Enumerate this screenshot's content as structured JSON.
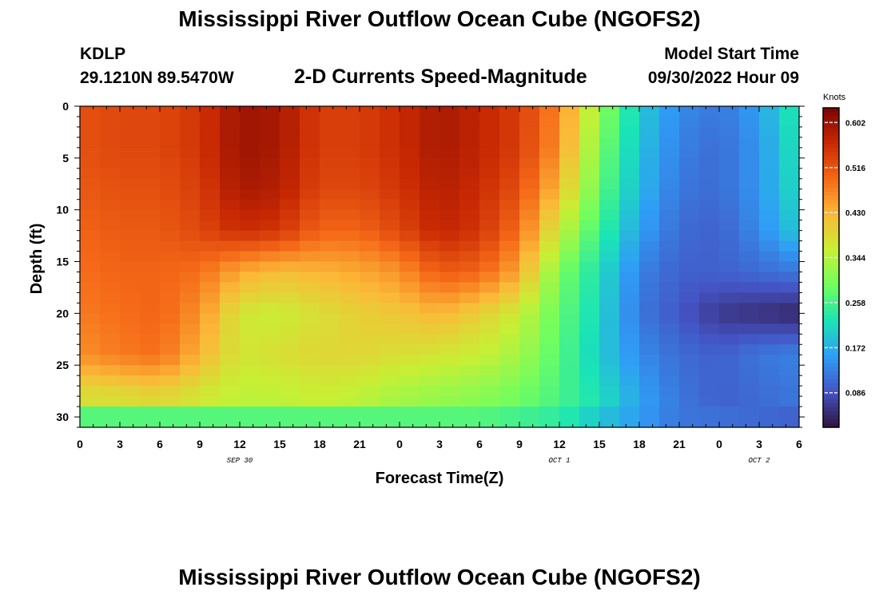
{
  "header": {
    "title": "Mississippi River Outflow Ocean Cube (NGOFS2)",
    "station_id": "KDLP",
    "coordinates": "29.1210N  89.5470W",
    "subtitle": "2-D Currents Speed-Magnitude",
    "model_start_label": "Model Start Time",
    "model_start_value": "09/30/2022 Hour 09"
  },
  "footer": {
    "title": "Mississippi River Outflow Ocean Cube (NGOFS2)"
  },
  "chart_data": {
    "type": "heatmap",
    "variable": "Current speed magnitude",
    "units": "Knots",
    "xlabel": "Forecast Time(Z)",
    "ylabel": "Depth (ft)",
    "x_ticks": [
      "0",
      "3",
      "6",
      "9",
      "12",
      "15",
      "18",
      "21",
      "0",
      "3",
      "6",
      "9",
      "12",
      "15",
      "18",
      "21",
      "0",
      "3",
      "6"
    ],
    "x_hours_range": [
      0,
      54
    ],
    "date_labels": [
      {
        "hour": 12,
        "text": "SEP 30"
      },
      {
        "hour": 36,
        "text": "OCT 1"
      },
      {
        "hour": 51,
        "text": "OCT 2"
      }
    ],
    "y_ticks": [
      0,
      5,
      10,
      15,
      20,
      25,
      30
    ],
    "ylim": [
      0,
      31
    ],
    "y_inverted": true,
    "colorbar": {
      "title": "Knots",
      "ticks": [
        "0.602",
        "0.516",
        "0.430",
        "0.344",
        "0.258",
        "0.172",
        "0.086"
      ],
      "tick_values": [
        0.602,
        0.516,
        0.43,
        0.344,
        0.258,
        0.172,
        0.086
      ],
      "range": [
        0.02,
        0.63
      ],
      "colormap": [
        "#30123b",
        "#4454c4",
        "#2f9df6",
        "#1ae4b6",
        "#71fe5f",
        "#c8ef34",
        "#fbb938",
        "#f56918",
        "#c92903",
        "#7a0403"
      ]
    },
    "bottom_band": {
      "depth_from": 29,
      "depth_to": 31,
      "values_by_hour": [
        [
          0,
          0.27
        ],
        [
          30,
          0.27
        ],
        [
          36,
          0.24
        ],
        [
          40,
          0.18
        ],
        [
          45,
          0.12
        ],
        [
          54,
          0.1
        ]
      ]
    },
    "depth_levels": [
      0,
      4,
      8,
      12,
      16,
      20,
      24,
      28
    ],
    "hours": [
      0,
      3,
      6,
      9,
      12,
      15,
      18,
      21,
      24,
      27,
      30,
      33,
      36,
      39,
      42,
      45,
      48,
      51,
      54
    ],
    "values": [
      [
        0.52,
        0.53,
        0.53,
        0.55,
        0.6,
        0.59,
        0.54,
        0.54,
        0.56,
        0.59,
        0.57,
        0.54,
        0.47,
        0.32,
        0.2,
        0.14,
        0.12,
        0.16,
        0.24
      ],
      [
        0.52,
        0.53,
        0.53,
        0.55,
        0.6,
        0.59,
        0.54,
        0.54,
        0.56,
        0.59,
        0.57,
        0.54,
        0.46,
        0.3,
        0.19,
        0.13,
        0.11,
        0.15,
        0.23
      ],
      [
        0.51,
        0.52,
        0.52,
        0.54,
        0.59,
        0.58,
        0.53,
        0.53,
        0.55,
        0.58,
        0.56,
        0.52,
        0.42,
        0.28,
        0.18,
        0.12,
        0.11,
        0.15,
        0.22
      ],
      [
        0.5,
        0.51,
        0.51,
        0.53,
        0.56,
        0.55,
        0.5,
        0.5,
        0.53,
        0.57,
        0.55,
        0.49,
        0.36,
        0.25,
        0.16,
        0.11,
        0.1,
        0.14,
        0.2
      ],
      [
        0.49,
        0.5,
        0.5,
        0.49,
        0.44,
        0.42,
        0.43,
        0.44,
        0.46,
        0.51,
        0.5,
        0.44,
        0.3,
        0.22,
        0.13,
        0.1,
        0.1,
        0.11,
        0.12
      ],
      [
        0.48,
        0.49,
        0.5,
        0.46,
        0.37,
        0.36,
        0.38,
        0.4,
        0.41,
        0.43,
        0.4,
        0.36,
        0.28,
        0.21,
        0.12,
        0.09,
        0.06,
        0.05,
        0.04
      ],
      [
        0.46,
        0.48,
        0.49,
        0.43,
        0.37,
        0.38,
        0.39,
        0.39,
        0.38,
        0.37,
        0.36,
        0.33,
        0.27,
        0.2,
        0.14,
        0.11,
        0.1,
        0.12,
        0.13
      ],
      [
        0.38,
        0.38,
        0.39,
        0.37,
        0.35,
        0.35,
        0.36,
        0.35,
        0.33,
        0.32,
        0.31,
        0.29,
        0.26,
        0.22,
        0.16,
        0.12,
        0.1,
        0.11,
        0.12
      ]
    ]
  }
}
